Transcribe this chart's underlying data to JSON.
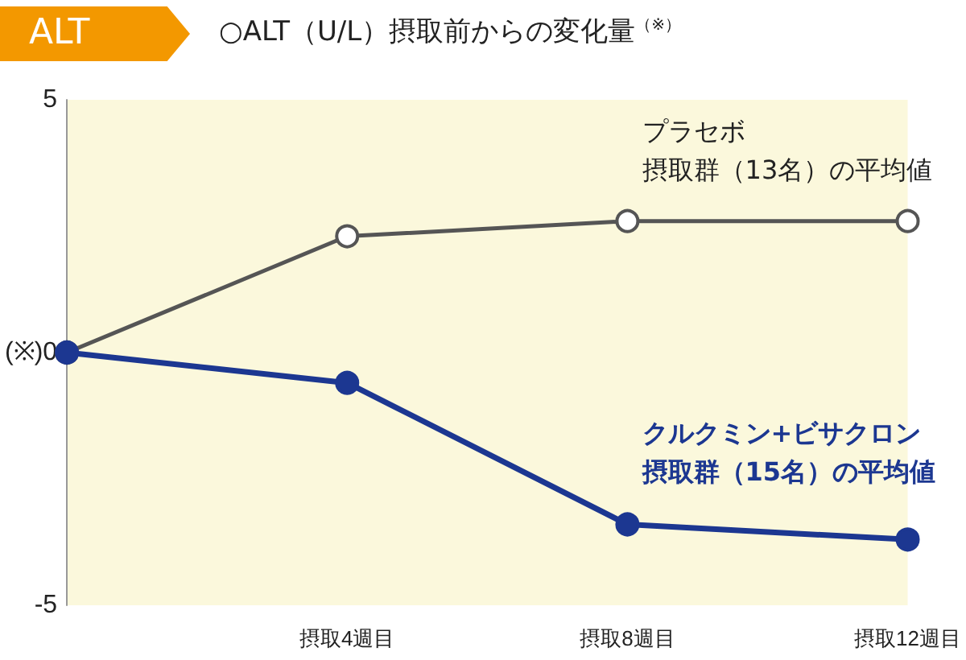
{
  "chart_data": {
    "type": "line",
    "title": "ALT",
    "subtitle": "○ALT（U/L）摂取前からの変化量$^{（※）}$",
    "categories": [
      null,
      "摂取4週目",
      "摂取8週目",
      "摂取12週目"
    ],
    "series": [
      {
        "name": "プラセボ摂取群（13名）の平均値",
        "color": "#555555",
        "values": [
          0,
          2.3,
          2.6,
          2.6
        ]
      },
      {
        "name": "クルクミン+ビサクロン摂取群（15名）の平均値",
        "color": "#1c3791",
        "values": [
          0,
          -0.6,
          -3.4,
          -3.7
        ]
      }
    ],
    "ylim": [
      -5,
      5
    ],
    "yticks": [
      -5,
      {
        "value": 0,
        "label": "(※)0"
      },
      5
    ],
    "grid": false,
    "legend": false,
    "marker": "circle",
    "line_style": "solid"
  }
}
